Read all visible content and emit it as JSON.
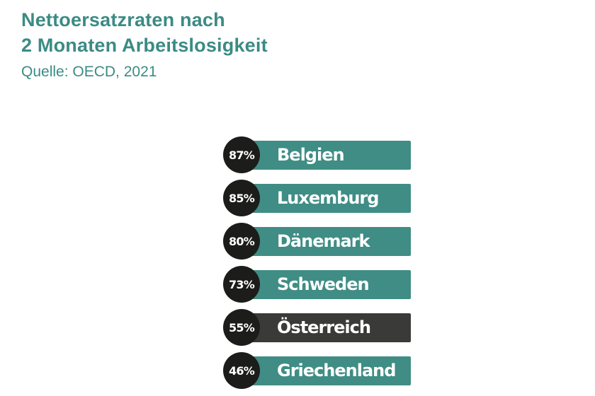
{
  "chart_data": {
    "type": "bar",
    "title": "Nettoersatzraten nach 2 Monaten Arbeitslosigkeit",
    "title_lines": [
      "Nettoersatzraten nach",
      "2 Monaten Arbeitslosigkeit"
    ],
    "subtitle": "Quelle: OECD, 2021",
    "categories": [
      "Belgien",
      "Luxemburg",
      "Dänemark",
      "Schweden",
      "Österreich",
      "Griechenland"
    ],
    "values": [
      87,
      85,
      80,
      73,
      55,
      46
    ],
    "value_labels": [
      "87%",
      "85%",
      "80%",
      "73%",
      "55%",
      "46%"
    ],
    "unit": "%",
    "highlight": "Österreich",
    "colors": {
      "bar": "#3f8d85",
      "highlight_bar": "#3a3a39",
      "badge": "#1c1c1b",
      "title": "#3b8b84",
      "label": "#ffffff"
    }
  }
}
